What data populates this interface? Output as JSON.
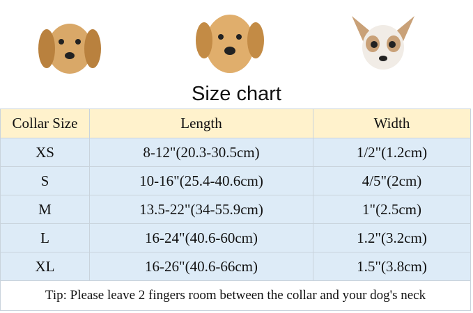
{
  "title": "Size chart",
  "columns": [
    "Collar Size",
    "Length",
    "Width"
  ],
  "rows": [
    [
      "XS",
      "8-12\"(20.3-30.5cm)",
      "1/2\"(1.2cm)"
    ],
    [
      "S",
      "10-16\"(25.4-40.6cm)",
      "4/5\"(2cm)"
    ],
    [
      "M",
      "13.5-22\"(34-55.9cm)",
      "1\"(2.5cm)"
    ],
    [
      "L",
      "16-24\"(40.6-60cm)",
      "1.2\"(3.2cm)"
    ],
    [
      "XL",
      "16-26\"(40.6-66cm)",
      "1.5\"(3.8cm)"
    ]
  ],
  "tip": "Tip: Please leave 2 fingers room between the collar and your dog's neck",
  "colors": {
    "header": "#fff2cc",
    "rows": "#ddebf7"
  }
}
